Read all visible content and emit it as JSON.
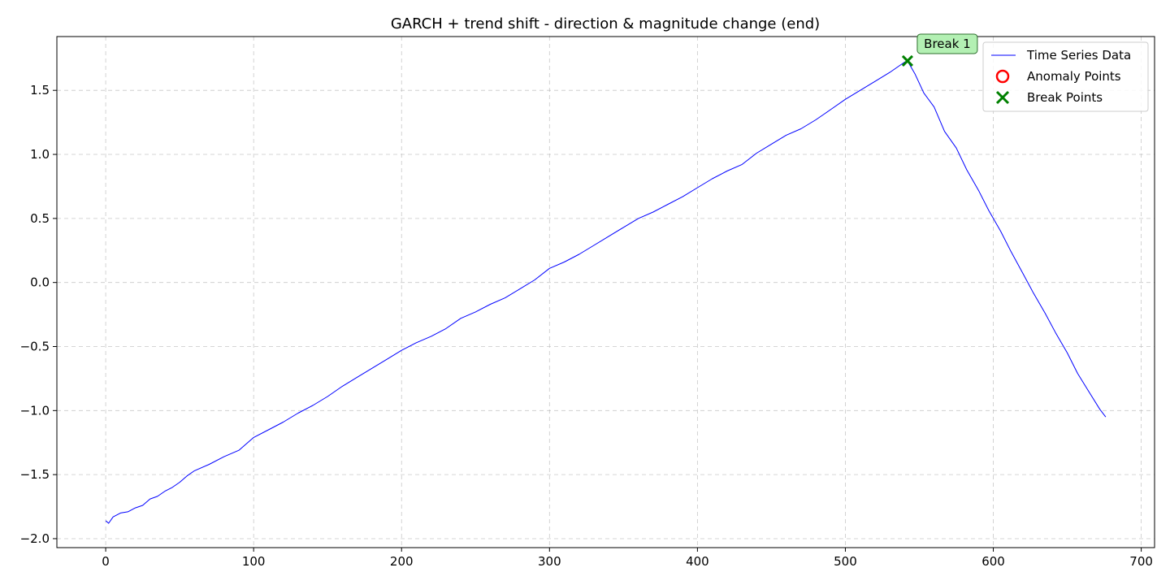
{
  "chart_data": {
    "type": "line",
    "title": "GARCH + trend shift - direction & magnitude change (end)",
    "xlabel": "",
    "ylabel": "",
    "xlim": [
      -33,
      709
    ],
    "ylim": [
      -2.07,
      1.92
    ],
    "x_ticks": [
      0,
      100,
      200,
      300,
      400,
      500,
      600,
      700
    ],
    "x_tick_labels": [
      "0",
      "100",
      "200",
      "300",
      "400",
      "500",
      "600",
      "700"
    ],
    "y_ticks": [
      -2.0,
      -1.5,
      -1.0,
      -0.5,
      0.0,
      0.5,
      1.0,
      1.5
    ],
    "y_tick_labels": [
      "−2.0",
      "−1.5",
      "−1.0",
      "−0.5",
      "0.0",
      "0.5",
      "1.0",
      "1.5"
    ],
    "grid": true,
    "legend_position": "top-right",
    "series": [
      {
        "name": "Time Series Data",
        "kind": "line",
        "color": "#0000ff",
        "points": [
          [
            0,
            -1.86
          ],
          [
            2,
            -1.88
          ],
          [
            5,
            -1.83
          ],
          [
            10,
            -1.8
          ],
          [
            15,
            -1.79
          ],
          [
            20,
            -1.76
          ],
          [
            25,
            -1.74
          ],
          [
            30,
            -1.69
          ],
          [
            35,
            -1.67
          ],
          [
            40,
            -1.63
          ],
          [
            45,
            -1.6
          ],
          [
            50,
            -1.56
          ],
          [
            55,
            -1.51
          ],
          [
            60,
            -1.47
          ],
          [
            70,
            -1.42
          ],
          [
            80,
            -1.36
          ],
          [
            90,
            -1.31
          ],
          [
            100,
            -1.21
          ],
          [
            110,
            -1.15
          ],
          [
            120,
            -1.09
          ],
          [
            130,
            -1.02
          ],
          [
            140,
            -0.96
          ],
          [
            150,
            -0.89
          ],
          [
            160,
            -0.81
          ],
          [
            170,
            -0.74
          ],
          [
            180,
            -0.67
          ],
          [
            190,
            -0.6
          ],
          [
            200,
            -0.53
          ],
          [
            210,
            -0.47
          ],
          [
            220,
            -0.42
          ],
          [
            230,
            -0.36
          ],
          [
            240,
            -0.28
          ],
          [
            250,
            -0.23
          ],
          [
            260,
            -0.17
          ],
          [
            270,
            -0.12
          ],
          [
            280,
            -0.05
          ],
          [
            290,
            0.02
          ],
          [
            300,
            0.11
          ],
          [
            310,
            0.16
          ],
          [
            320,
            0.22
          ],
          [
            330,
            0.29
          ],
          [
            340,
            0.36
          ],
          [
            350,
            0.43
          ],
          [
            360,
            0.5
          ],
          [
            370,
            0.55
          ],
          [
            380,
            0.61
          ],
          [
            390,
            0.67
          ],
          [
            400,
            0.74
          ],
          [
            410,
            0.81
          ],
          [
            420,
            0.87
          ],
          [
            430,
            0.92
          ],
          [
            440,
            1.01
          ],
          [
            450,
            1.08
          ],
          [
            460,
            1.15
          ],
          [
            470,
            1.2
          ],
          [
            480,
            1.27
          ],
          [
            490,
            1.35
          ],
          [
            500,
            1.43
          ],
          [
            510,
            1.5
          ],
          [
            520,
            1.57
          ],
          [
            530,
            1.64
          ],
          [
            540,
            1.72
          ],
          [
            542,
            1.73
          ],
          [
            547,
            1.63
          ],
          [
            553,
            1.48
          ],
          [
            560,
            1.37
          ],
          [
            567,
            1.18
          ],
          [
            575,
            1.05
          ],
          [
            582,
            0.88
          ],
          [
            590,
            0.72
          ],
          [
            597,
            0.56
          ],
          [
            605,
            0.4
          ],
          [
            612,
            0.24
          ],
          [
            620,
            0.07
          ],
          [
            627,
            -0.08
          ],
          [
            635,
            -0.24
          ],
          [
            642,
            -0.39
          ],
          [
            650,
            -0.55
          ],
          [
            657,
            -0.71
          ],
          [
            665,
            -0.86
          ],
          [
            672,
            -0.99
          ],
          [
            676,
            -1.05
          ]
        ]
      },
      {
        "name": "Anomaly Points",
        "kind": "marker",
        "marker": "circle-open",
        "color": "#ff0000",
        "points": []
      },
      {
        "name": "Break Points",
        "kind": "marker",
        "marker": "x",
        "color": "#008000",
        "points": [
          [
            542,
            1.73
          ]
        ]
      }
    ],
    "annotations": [
      {
        "text": "Break 1",
        "x": 542,
        "y": 1.73,
        "background": "#b3f0b3",
        "border": "#2f6f2f"
      }
    ]
  }
}
